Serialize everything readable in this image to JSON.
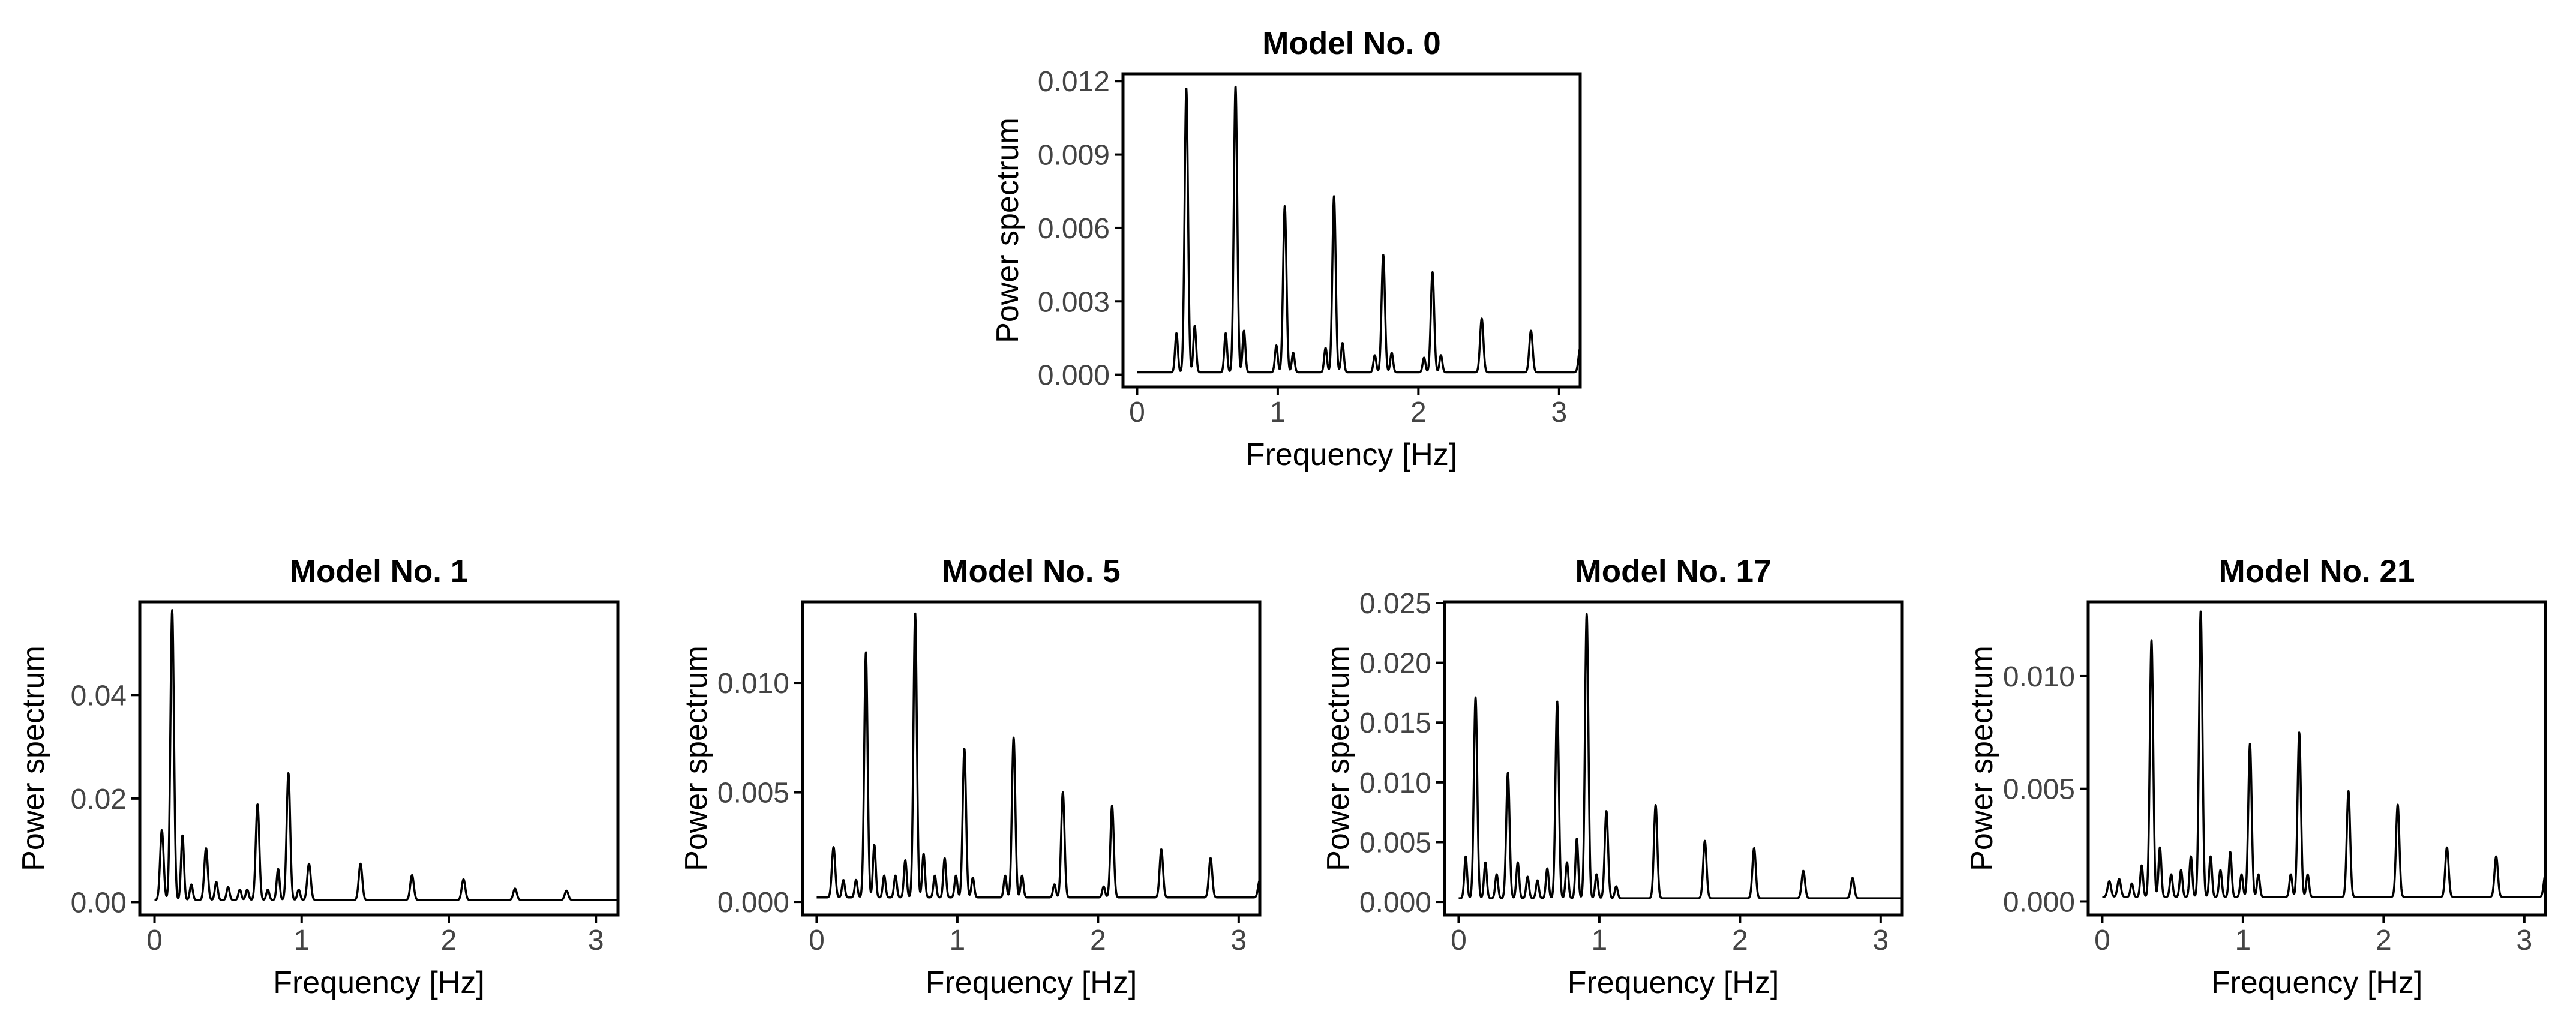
{
  "chart_data": [
    {
      "type": "line",
      "title": "Model No. 0",
      "xlabel": "Frequency [Hz]",
      "ylabel": "Power spectrum",
      "xlim": [
        -0.1,
        3.15
      ],
      "ylim": [
        -0.0005,
        0.0123
      ],
      "xticks": [
        0,
        1,
        2,
        3
      ],
      "xtick_labels": [
        "0",
        "1",
        "2",
        "3"
      ],
      "yticks": [
        0,
        0.003,
        0.006,
        0.009,
        0.012
      ],
      "ytick_labels": [
        "0.000",
        "0.003",
        "0.006",
        "0.009",
        "0.012"
      ],
      "baseline": 0.0001,
      "peaks": [
        {
          "f": 0.28,
          "v": 0.0016,
          "w": 0.01
        },
        {
          "f": 0.35,
          "v": 0.0116,
          "w": 0.012
        },
        {
          "f": 0.41,
          "v": 0.0019,
          "w": 0.01
        },
        {
          "f": 0.63,
          "v": 0.0016,
          "w": 0.01
        },
        {
          "f": 0.7,
          "v": 0.0117,
          "w": 0.012
        },
        {
          "f": 0.76,
          "v": 0.0017,
          "w": 0.01
        },
        {
          "f": 0.99,
          "v": 0.0011,
          "w": 0.01
        },
        {
          "f": 1.05,
          "v": 0.0068,
          "w": 0.012
        },
        {
          "f": 1.11,
          "v": 0.0008,
          "w": 0.01
        },
        {
          "f": 1.34,
          "v": 0.001,
          "w": 0.01
        },
        {
          "f": 1.4,
          "v": 0.0072,
          "w": 0.012
        },
        {
          "f": 1.46,
          "v": 0.0012,
          "w": 0.01
        },
        {
          "f": 1.69,
          "v": 0.0007,
          "w": 0.01
        },
        {
          "f": 1.75,
          "v": 0.0048,
          "w": 0.012
        },
        {
          "f": 1.81,
          "v": 0.0008,
          "w": 0.01
        },
        {
          "f": 2.04,
          "v": 0.0006,
          "w": 0.01
        },
        {
          "f": 2.1,
          "v": 0.0041,
          "w": 0.012
        },
        {
          "f": 2.16,
          "v": 0.0007,
          "w": 0.01
        },
        {
          "f": 2.45,
          "v": 0.0022,
          "w": 0.012
        },
        {
          "f": 2.8,
          "v": 0.0017,
          "w": 0.012
        },
        {
          "f": 3.15,
          "v": 0.001,
          "w": 0.012
        }
      ]
    },
    {
      "type": "line",
      "title": "Model No. 1",
      "xlabel": "Frequency [Hz]",
      "ylabel": "Power spectrum",
      "xlim": [
        -0.1,
        3.15
      ],
      "ylim": [
        -0.0025,
        0.058
      ],
      "xticks": [
        0,
        1,
        2,
        3
      ],
      "xtick_labels": [
        "0",
        "1",
        "2",
        "3"
      ],
      "yticks": [
        0,
        0.02,
        0.04
      ],
      "ytick_labels": [
        "0.00",
        "0.02",
        "0.04"
      ],
      "baseline": 0.0004,
      "peaks": [
        {
          "f": 0.05,
          "v": 0.0135,
          "w": 0.012
        },
        {
          "f": 0.12,
          "v": 0.056,
          "w": 0.012
        },
        {
          "f": 0.19,
          "v": 0.0125,
          "w": 0.01
        },
        {
          "f": 0.25,
          "v": 0.003,
          "w": 0.01
        },
        {
          "f": 0.35,
          "v": 0.01,
          "w": 0.012
        },
        {
          "f": 0.42,
          "v": 0.0035,
          "w": 0.01
        },
        {
          "f": 0.5,
          "v": 0.0025,
          "w": 0.01
        },
        {
          "f": 0.58,
          "v": 0.002,
          "w": 0.01
        },
        {
          "f": 0.63,
          "v": 0.002,
          "w": 0.01
        },
        {
          "f": 0.7,
          "v": 0.0185,
          "w": 0.012
        },
        {
          "f": 0.77,
          "v": 0.002,
          "w": 0.01
        },
        {
          "f": 0.84,
          "v": 0.006,
          "w": 0.01
        },
        {
          "f": 0.91,
          "v": 0.0245,
          "w": 0.012
        },
        {
          "f": 0.98,
          "v": 0.002,
          "w": 0.01
        },
        {
          "f": 1.05,
          "v": 0.007,
          "w": 0.012
        },
        {
          "f": 1.4,
          "v": 0.007,
          "w": 0.012
        },
        {
          "f": 1.75,
          "v": 0.0048,
          "w": 0.012
        },
        {
          "f": 2.1,
          "v": 0.004,
          "w": 0.012
        },
        {
          "f": 2.45,
          "v": 0.0022,
          "w": 0.012
        },
        {
          "f": 2.8,
          "v": 0.0018,
          "w": 0.012
        }
      ]
    },
    {
      "type": "line",
      "title": "Model No. 5",
      "xlabel": "Frequency [Hz]",
      "ylabel": "Power spectrum",
      "xlim": [
        -0.1,
        3.15
      ],
      "ylim": [
        -0.0006,
        0.0137
      ],
      "xticks": [
        0,
        1,
        2,
        3
      ],
      "xtick_labels": [
        "0",
        "1",
        "2",
        "3"
      ],
      "yticks": [
        0,
        0.005,
        0.01
      ],
      "ytick_labels": [
        "0.000",
        "0.005",
        "0.010"
      ],
      "baseline": 0.0002,
      "peaks": [
        {
          "f": 0.12,
          "v": 0.0023,
          "w": 0.012
        },
        {
          "f": 0.19,
          "v": 0.0008,
          "w": 0.01
        },
        {
          "f": 0.28,
          "v": 0.0008,
          "w": 0.01
        },
        {
          "f": 0.35,
          "v": 0.0112,
          "w": 0.012
        },
        {
          "f": 0.41,
          "v": 0.0024,
          "w": 0.01
        },
        {
          "f": 0.48,
          "v": 0.001,
          "w": 0.01
        },
        {
          "f": 0.56,
          "v": 0.001,
          "w": 0.01
        },
        {
          "f": 0.63,
          "v": 0.0017,
          "w": 0.01
        },
        {
          "f": 0.7,
          "v": 0.013,
          "w": 0.012
        },
        {
          "f": 0.76,
          "v": 0.002,
          "w": 0.01
        },
        {
          "f": 0.84,
          "v": 0.001,
          "w": 0.01
        },
        {
          "f": 0.91,
          "v": 0.0018,
          "w": 0.01
        },
        {
          "f": 0.99,
          "v": 0.001,
          "w": 0.01
        },
        {
          "f": 1.05,
          "v": 0.0068,
          "w": 0.012
        },
        {
          "f": 1.11,
          "v": 0.0009,
          "w": 0.01
        },
        {
          "f": 1.34,
          "v": 0.001,
          "w": 0.01
        },
        {
          "f": 1.4,
          "v": 0.0073,
          "w": 0.012
        },
        {
          "f": 1.46,
          "v": 0.001,
          "w": 0.01
        },
        {
          "f": 1.69,
          "v": 0.0006,
          "w": 0.01
        },
        {
          "f": 1.75,
          "v": 0.0048,
          "w": 0.012
        },
        {
          "f": 2.04,
          "v": 0.0005,
          "w": 0.01
        },
        {
          "f": 2.1,
          "v": 0.0042,
          "w": 0.012
        },
        {
          "f": 2.45,
          "v": 0.0022,
          "w": 0.012
        },
        {
          "f": 2.8,
          "v": 0.0018,
          "w": 0.012
        },
        {
          "f": 3.15,
          "v": 0.0008,
          "w": 0.012
        }
      ]
    },
    {
      "type": "line",
      "title": "Model No. 17",
      "xlabel": "Frequency [Hz]",
      "ylabel": "Power spectrum",
      "xlim": [
        -0.1,
        3.15
      ],
      "ylim": [
        -0.0011,
        0.0251
      ],
      "xticks": [
        0,
        1,
        2,
        3
      ],
      "xtick_labels": [
        "0",
        "1",
        "2",
        "3"
      ],
      "yticks": [
        0,
        0.005,
        0.01,
        0.015,
        0.02,
        0.025
      ],
      "ytick_labels": [
        "0.000",
        "0.005",
        "0.010",
        "0.015",
        "0.020",
        "0.025"
      ],
      "baseline": 0.0003,
      "peaks": [
        {
          "f": 0.05,
          "v": 0.0035,
          "w": 0.01
        },
        {
          "f": 0.12,
          "v": 0.0168,
          "w": 0.012
        },
        {
          "f": 0.19,
          "v": 0.003,
          "w": 0.01
        },
        {
          "f": 0.27,
          "v": 0.002,
          "w": 0.01
        },
        {
          "f": 0.35,
          "v": 0.0105,
          "w": 0.012
        },
        {
          "f": 0.42,
          "v": 0.003,
          "w": 0.01
        },
        {
          "f": 0.49,
          "v": 0.0018,
          "w": 0.01
        },
        {
          "f": 0.56,
          "v": 0.0015,
          "w": 0.01
        },
        {
          "f": 0.63,
          "v": 0.0025,
          "w": 0.01
        },
        {
          "f": 0.7,
          "v": 0.0165,
          "w": 0.012
        },
        {
          "f": 0.77,
          "v": 0.003,
          "w": 0.01
        },
        {
          "f": 0.84,
          "v": 0.005,
          "w": 0.01
        },
        {
          "f": 0.91,
          "v": 0.0238,
          "w": 0.012
        },
        {
          "f": 0.98,
          "v": 0.002,
          "w": 0.01
        },
        {
          "f": 1.05,
          "v": 0.0073,
          "w": 0.012
        },
        {
          "f": 1.12,
          "v": 0.001,
          "w": 0.01
        },
        {
          "f": 1.4,
          "v": 0.0078,
          "w": 0.012
        },
        {
          "f": 1.75,
          "v": 0.0048,
          "w": 0.012
        },
        {
          "f": 2.1,
          "v": 0.0042,
          "w": 0.012
        },
        {
          "f": 2.45,
          "v": 0.0023,
          "w": 0.012
        },
        {
          "f": 2.8,
          "v": 0.0017,
          "w": 0.012
        }
      ]
    },
    {
      "type": "line",
      "title": "Model No. 21",
      "xlabel": "Frequency [Hz]",
      "ylabel": "Power spectrum",
      "xlim": [
        -0.1,
        3.15
      ],
      "ylim": [
        -0.0006,
        0.0133
      ],
      "xticks": [
        0,
        1,
        2,
        3
      ],
      "xtick_labels": [
        "0",
        "1",
        "2",
        "3"
      ],
      "yticks": [
        0,
        0.005,
        0.01
      ],
      "ytick_labels": [
        "0.000",
        "0.005",
        "0.010"
      ],
      "baseline": 0.0002,
      "peaks": [
        {
          "f": 0.05,
          "v": 0.0007,
          "w": 0.012
        },
        {
          "f": 0.12,
          "v": 0.0008,
          "w": 0.012
        },
        {
          "f": 0.21,
          "v": 0.0006,
          "w": 0.01
        },
        {
          "f": 0.28,
          "v": 0.0014,
          "w": 0.01
        },
        {
          "f": 0.35,
          "v": 0.0114,
          "w": 0.012
        },
        {
          "f": 0.41,
          "v": 0.0022,
          "w": 0.01
        },
        {
          "f": 0.49,
          "v": 0.001,
          "w": 0.01
        },
        {
          "f": 0.56,
          "v": 0.0012,
          "w": 0.01
        },
        {
          "f": 0.63,
          "v": 0.0018,
          "w": 0.01
        },
        {
          "f": 0.7,
          "v": 0.0127,
          "w": 0.012
        },
        {
          "f": 0.77,
          "v": 0.0018,
          "w": 0.01
        },
        {
          "f": 0.84,
          "v": 0.0012,
          "w": 0.01
        },
        {
          "f": 0.91,
          "v": 0.002,
          "w": 0.01
        },
        {
          "f": 0.99,
          "v": 0.001,
          "w": 0.01
        },
        {
          "f": 1.05,
          "v": 0.0068,
          "w": 0.012
        },
        {
          "f": 1.11,
          "v": 0.001,
          "w": 0.01
        },
        {
          "f": 1.34,
          "v": 0.001,
          "w": 0.01
        },
        {
          "f": 1.4,
          "v": 0.0073,
          "w": 0.012
        },
        {
          "f": 1.46,
          "v": 0.001,
          "w": 0.01
        },
        {
          "f": 1.75,
          "v": 0.0047,
          "w": 0.012
        },
        {
          "f": 2.1,
          "v": 0.0041,
          "w": 0.012
        },
        {
          "f": 2.45,
          "v": 0.0022,
          "w": 0.012
        },
        {
          "f": 2.8,
          "v": 0.0018,
          "w": 0.012
        },
        {
          "f": 3.15,
          "v": 0.001,
          "w": 0.012
        }
      ]
    }
  ]
}
